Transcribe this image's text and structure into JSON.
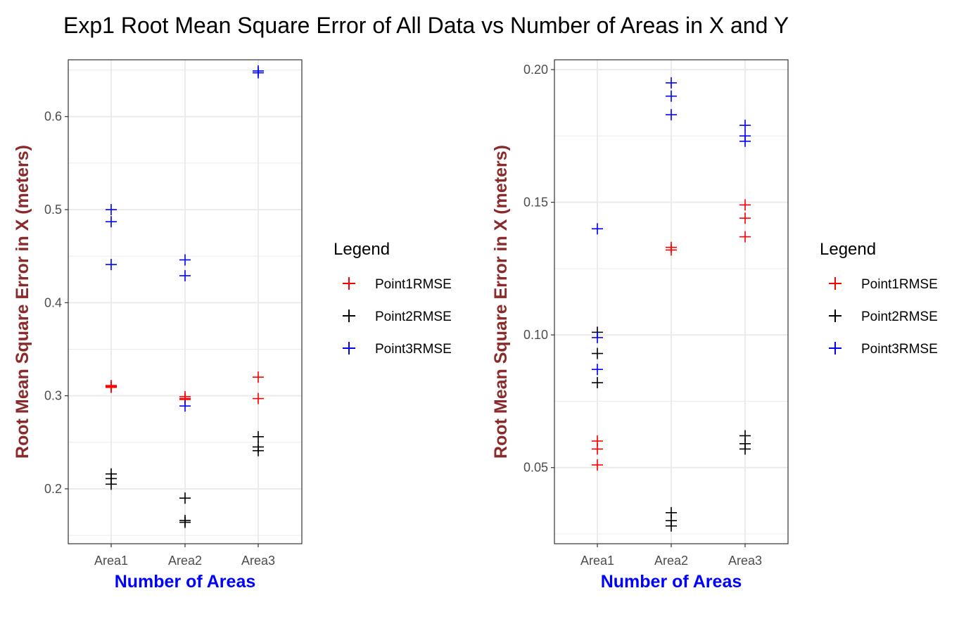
{
  "title": "Exp1 Root Mean Square Error of All Data vs Number of Areas in X and Y",
  "colors": {
    "ylabel": "#8b2a2a",
    "xlabel": "#0000ff",
    "Point1RMSE": "#ff0000",
    "Point2RMSE": "#000000",
    "Point3RMSE": "#0000ff"
  },
  "chart_data": [
    {
      "type": "scatter",
      "marker": "plus",
      "xlabel": "Number of Areas",
      "ylabel": "Root Mean Square Error in X (meters)",
      "categories": [
        "Area1",
        "Area2",
        "Area3"
      ],
      "ylim": [
        0.141,
        0.661
      ],
      "yticks": [
        0.2,
        0.3,
        0.4,
        0.5,
        0.6
      ],
      "ytick_labels": [
        "0.2",
        "0.3",
        "0.4",
        "0.5",
        "0.6"
      ],
      "grid": true,
      "legend": {
        "title": "Legend",
        "position": "right",
        "entries": [
          "Point1RMSE",
          "Point2RMSE",
          "Point3RMSE"
        ]
      },
      "series": [
        {
          "name": "Point1RMSE",
          "points": [
            [
              "Area1",
              0.311
            ],
            [
              "Area1",
              0.31
            ],
            [
              "Area1",
              0.309
            ],
            [
              "Area2",
              0.299
            ],
            [
              "Area2",
              0.297
            ],
            [
              "Area2",
              0.296
            ],
            [
              "Area3",
              0.32
            ],
            [
              "Area3",
              0.297
            ]
          ]
        },
        {
          "name": "Point2RMSE",
          "points": [
            [
              "Area1",
              0.216
            ],
            [
              "Area1",
              0.211
            ],
            [
              "Area1",
              0.205
            ],
            [
              "Area2",
              0.19
            ],
            [
              "Area2",
              0.166
            ],
            [
              "Area2",
              0.164
            ],
            [
              "Area3",
              0.256
            ],
            [
              "Area3",
              0.245
            ],
            [
              "Area3",
              0.241
            ]
          ]
        },
        {
          "name": "Point3RMSE",
          "points": [
            [
              "Area1",
              0.5
            ],
            [
              "Area1",
              0.487
            ],
            [
              "Area1",
              0.441
            ],
            [
              "Area2",
              0.446
            ],
            [
              "Area2",
              0.429
            ],
            [
              "Area2",
              0.289
            ],
            [
              "Area3",
              0.649
            ],
            [
              "Area3",
              0.647
            ]
          ]
        }
      ]
    },
    {
      "type": "scatter",
      "marker": "plus",
      "xlabel": "Number of Areas",
      "ylabel": "Root Mean Square Error in X (meters)",
      "categories": [
        "Area1",
        "Area2",
        "Area3"
      ],
      "ylim": [
        0.0213,
        0.2037
      ],
      "yticks": [
        0.05,
        0.1,
        0.15,
        0.2
      ],
      "ytick_labels": [
        "0.05",
        "0.10",
        "0.15",
        "0.20"
      ],
      "grid": true,
      "legend": {
        "title": "Legend",
        "position": "right",
        "entries": [
          "Point1RMSE",
          "Point2RMSE",
          "Point3RMSE"
        ]
      },
      "series": [
        {
          "name": "Point1RMSE",
          "points": [
            [
              "Area1",
              0.06
            ],
            [
              "Area1",
              0.057
            ],
            [
              "Area1",
              0.051
            ],
            [
              "Area2",
              0.133
            ],
            [
              "Area2",
              0.132
            ],
            [
              "Area3",
              0.149
            ],
            [
              "Area3",
              0.144
            ],
            [
              "Area3",
              0.137
            ]
          ]
        },
        {
          "name": "Point2RMSE",
          "points": [
            [
              "Area1",
              0.101
            ],
            [
              "Area1",
              0.093
            ],
            [
              "Area1",
              0.082
            ],
            [
              "Area2",
              0.033
            ],
            [
              "Area2",
              0.03
            ],
            [
              "Area2",
              0.028
            ],
            [
              "Area3",
              0.062
            ],
            [
              "Area3",
              0.059
            ],
            [
              "Area3",
              0.057
            ]
          ]
        },
        {
          "name": "Point3RMSE",
          "points": [
            [
              "Area1",
              0.14
            ],
            [
              "Area1",
              0.099
            ],
            [
              "Area1",
              0.087
            ],
            [
              "Area2",
              0.195
            ],
            [
              "Area2",
              0.19
            ],
            [
              "Area2",
              0.183
            ],
            [
              "Area3",
              0.179
            ],
            [
              "Area3",
              0.175
            ],
            [
              "Area3",
              0.173
            ]
          ]
        }
      ]
    }
  ]
}
